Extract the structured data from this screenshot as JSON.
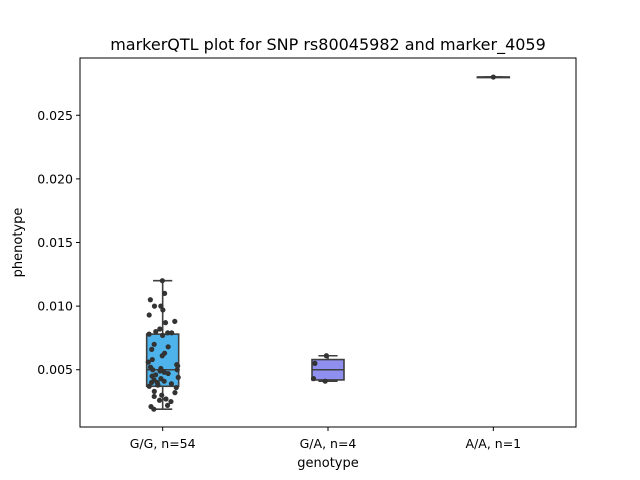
{
  "chart_data": {
    "type": "box",
    "title": "markerQTL plot for SNP rs80045982 and marker_4059",
    "xlabel": "genotype",
    "ylabel": "phenotype",
    "categories": [
      "G/G, n=54",
      "G/A, n=4",
      "A/A, n=1"
    ],
    "ylim": [
      0.0005,
      0.0295
    ],
    "yticks": [
      0.005,
      0.01,
      0.015,
      0.02,
      0.025
    ],
    "ytick_labels": [
      "0.005",
      "0.010",
      "0.015",
      "0.020",
      "0.025"
    ],
    "colors": [
      "#4db3ea",
      "#8f8ff0",
      "#ef8fb0"
    ],
    "boxes": [
      {
        "category": "G/G, n=54",
        "whisker_low": 0.0019,
        "q1": 0.0037,
        "median": 0.005,
        "q3": 0.0078,
        "whisker_high": 0.012
      },
      {
        "category": "G/A, n=4",
        "whisker_low": 0.0041,
        "q1": 0.0042,
        "median": 0.005,
        "q3": 0.0058,
        "whisker_high": 0.0061
      },
      {
        "category": "A/A, n=1",
        "whisker_low": 0.028,
        "q1": 0.028,
        "median": 0.028,
        "q3": 0.028,
        "whisker_high": 0.028
      }
    ],
    "points": [
      [
        0.012,
        0.011,
        0.0105,
        0.01,
        0.01,
        0.0097,
        0.0093,
        0.0088,
        0.0087,
        0.0082,
        0.008,
        0.0079,
        0.0079,
        0.0078,
        0.0077,
        0.007,
        0.0068,
        0.0066,
        0.0063,
        0.0061,
        0.0058,
        0.0056,
        0.0054,
        0.0053,
        0.0052,
        0.0051,
        0.005,
        0.005,
        0.0049,
        0.0048,
        0.0047,
        0.0046,
        0.0045,
        0.0044,
        0.0043,
        0.0042,
        0.0041,
        0.004,
        0.004,
        0.0039,
        0.0038,
        0.0038,
        0.0037,
        0.0036,
        0.0033,
        0.0032,
        0.003,
        0.0029,
        0.0027,
        0.0026,
        0.0025,
        0.0022,
        0.0021,
        0.0019
      ],
      [
        0.0061,
        0.0055,
        0.0043,
        0.0041
      ],
      [
        0.028
      ]
    ]
  }
}
